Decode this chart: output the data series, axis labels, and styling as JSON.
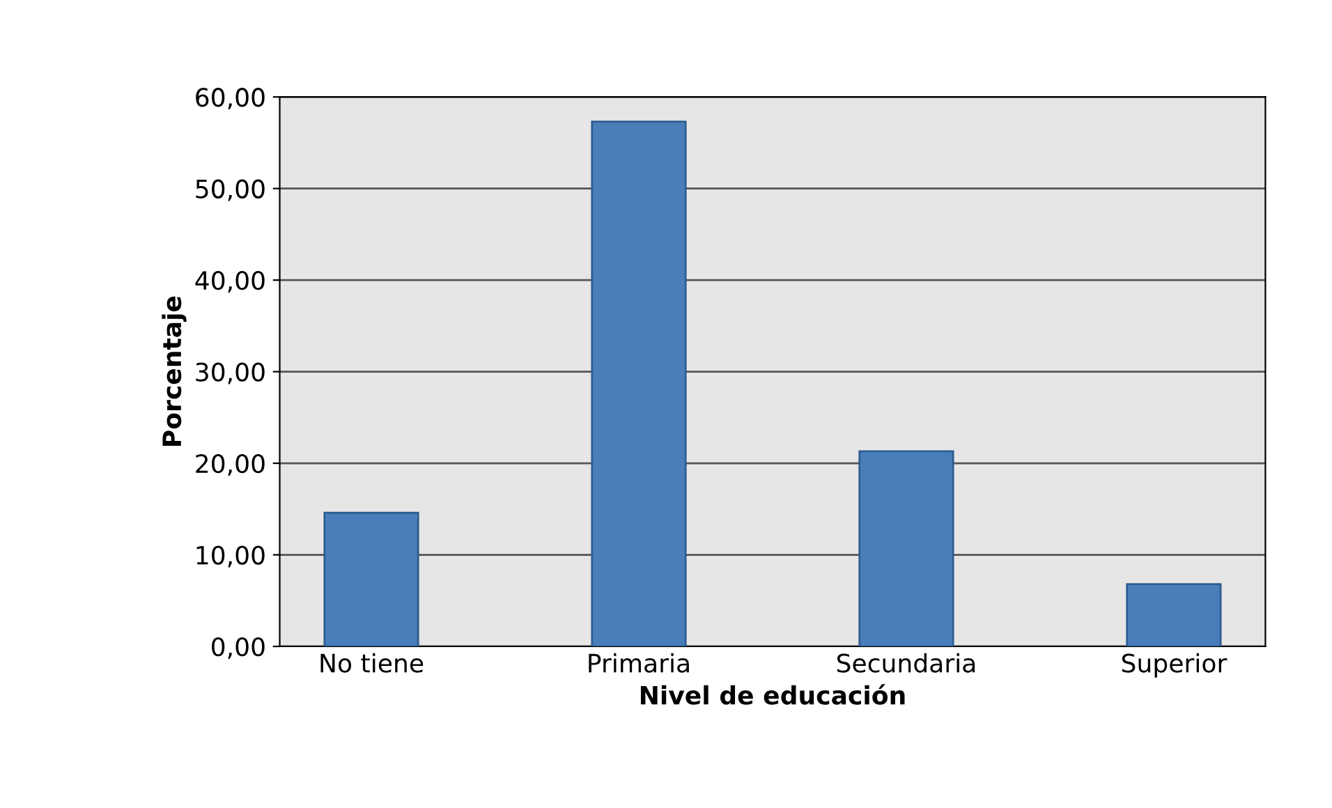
{
  "chart_data": {
    "type": "bar",
    "xlabel": "Nivel de educación",
    "ylabel": "Porcentaje",
    "categories": [
      "No tiene",
      "Primaria",
      "Secundaria",
      "Superior"
    ],
    "values": [
      14.6,
      57.3,
      21.3,
      6.8
    ],
    "color": "#4a7ebb",
    "ylim": [
      0,
      60
    ],
    "yticks": [
      {
        "value": 0,
        "label": "0,00"
      },
      {
        "value": 10,
        "label": "10,00"
      },
      {
        "value": 20,
        "label": "20,00"
      },
      {
        "value": 30,
        "label": "30,00"
      },
      {
        "value": 40,
        "label": "40,00"
      },
      {
        "value": 50,
        "label": "50,00"
      },
      {
        "value": 60,
        "label": "60,00"
      }
    ],
    "grid": "y"
  }
}
